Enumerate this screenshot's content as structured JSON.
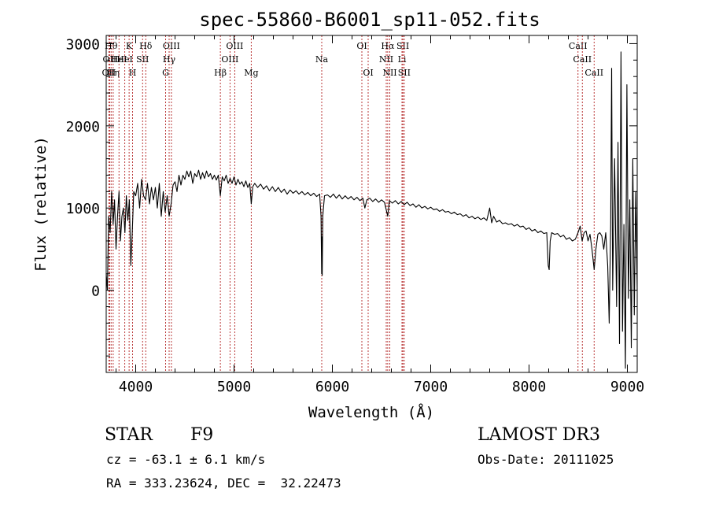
{
  "chart_data": {
    "type": "line",
    "title": "spec-55860-B6001_sp11-052.fits",
    "xlabel": "Wavelength (Å)",
    "ylabel": "Flux (relative)",
    "xlim": [
      3700,
      9100
    ],
    "ylim": [
      -1000,
      3100
    ],
    "x_ticks": [
      4000,
      5000,
      6000,
      7000,
      8000,
      9000
    ],
    "y_ticks": [
      0,
      1000,
      2000,
      3000
    ],
    "grid": false,
    "series": [
      {
        "points": [
          [
            3700,
            200
          ],
          [
            3712,
            0
          ],
          [
            3725,
            900
          ],
          [
            3740,
            700
          ],
          [
            3755,
            1200
          ],
          [
            3770,
            800
          ],
          [
            3785,
            1100
          ],
          [
            3800,
            500
          ],
          [
            3815,
            900
          ],
          [
            3830,
            1200
          ],
          [
            3845,
            600
          ],
          [
            3860,
            900
          ],
          [
            3875,
            1000
          ],
          [
            3890,
            700
          ],
          [
            3905,
            1150
          ],
          [
            3920,
            850
          ],
          [
            3935,
            1100
          ],
          [
            3950,
            300
          ],
          [
            3965,
            700
          ],
          [
            3980,
            1200
          ],
          [
            4000,
            1150
          ],
          [
            4020,
            1300
          ],
          [
            4040,
            1000
          ],
          [
            4060,
            1350
          ],
          [
            4080,
            1150
          ],
          [
            4100,
            1100
          ],
          [
            4120,
            1300
          ],
          [
            4140,
            1050
          ],
          [
            4160,
            1250
          ],
          [
            4180,
            1100
          ],
          [
            4200,
            1250
          ],
          [
            4220,
            1000
          ],
          [
            4240,
            1300
          ],
          [
            4260,
            900
          ],
          [
            4280,
            1200
          ],
          [
            4300,
            950
          ],
          [
            4320,
            1150
          ],
          [
            4340,
            900
          ],
          [
            4360,
            1050
          ],
          [
            4380,
            1280
          ],
          [
            4400,
            1320
          ],
          [
            4420,
            1200
          ],
          [
            4440,
            1400
          ],
          [
            4460,
            1280
          ],
          [
            4480,
            1400
          ],
          [
            4500,
            1350
          ],
          [
            4520,
            1450
          ],
          [
            4540,
            1380
          ],
          [
            4560,
            1450
          ],
          [
            4580,
            1300
          ],
          [
            4600,
            1420
          ],
          [
            4620,
            1380
          ],
          [
            4640,
            1460
          ],
          [
            4660,
            1350
          ],
          [
            4680,
            1430
          ],
          [
            4700,
            1360
          ],
          [
            4720,
            1450
          ],
          [
            4740,
            1380
          ],
          [
            4760,
            1420
          ],
          [
            4780,
            1350
          ],
          [
            4800,
            1400
          ],
          [
            4820,
            1340
          ],
          [
            4840,
            1400
          ],
          [
            4861,
            1150
          ],
          [
            4880,
            1380
          ],
          [
            4900,
            1330
          ],
          [
            4920,
            1400
          ],
          [
            4940,
            1300
          ],
          [
            4960,
            1360
          ],
          [
            4980,
            1300
          ],
          [
            5000,
            1380
          ],
          [
            5020,
            1280
          ],
          [
            5040,
            1350
          ],
          [
            5060,
            1290
          ],
          [
            5080,
            1320
          ],
          [
            5100,
            1260
          ],
          [
            5120,
            1330
          ],
          [
            5140,
            1250
          ],
          [
            5160,
            1300
          ],
          [
            5175,
            1050
          ],
          [
            5190,
            1260
          ],
          [
            5210,
            1300
          ],
          [
            5240,
            1250
          ],
          [
            5270,
            1290
          ],
          [
            5300,
            1230
          ],
          [
            5330,
            1270
          ],
          [
            5360,
            1210
          ],
          [
            5390,
            1260
          ],
          [
            5420,
            1200
          ],
          [
            5450,
            1250
          ],
          [
            5480,
            1190
          ],
          [
            5510,
            1230
          ],
          [
            5540,
            1170
          ],
          [
            5570,
            1220
          ],
          [
            5600,
            1180
          ],
          [
            5630,
            1210
          ],
          [
            5660,
            1170
          ],
          [
            5690,
            1200
          ],
          [
            5720,
            1160
          ],
          [
            5750,
            1190
          ],
          [
            5780,
            1150
          ],
          [
            5810,
            1180
          ],
          [
            5840,
            1140
          ],
          [
            5870,
            1170
          ],
          [
            5885,
            900
          ],
          [
            5891,
            200
          ],
          [
            5894,
            650
          ],
          [
            5897,
            180
          ],
          [
            5902,
            900
          ],
          [
            5920,
            1150
          ],
          [
            5950,
            1160
          ],
          [
            5980,
            1130
          ],
          [
            6010,
            1170
          ],
          [
            6040,
            1120
          ],
          [
            6070,
            1160
          ],
          [
            6100,
            1110
          ],
          [
            6130,
            1150
          ],
          [
            6160,
            1110
          ],
          [
            6190,
            1140
          ],
          [
            6220,
            1100
          ],
          [
            6250,
            1130
          ],
          [
            6280,
            1090
          ],
          [
            6310,
            1120
          ],
          [
            6330,
            1000
          ],
          [
            6350,
            1100
          ],
          [
            6380,
            1120
          ],
          [
            6410,
            1080
          ],
          [
            6440,
            1110
          ],
          [
            6470,
            1070
          ],
          [
            6500,
            1100
          ],
          [
            6530,
            1070
          ],
          [
            6563,
            900
          ],
          [
            6580,
            1090
          ],
          [
            6610,
            1060
          ],
          [
            6640,
            1090
          ],
          [
            6670,
            1050
          ],
          [
            6700,
            1080
          ],
          [
            6730,
            1040
          ],
          [
            6760,
            1070
          ],
          [
            6790,
            1030
          ],
          [
            6820,
            1050
          ],
          [
            6850,
            1010
          ],
          [
            6880,
            1040
          ],
          [
            6910,
            1000
          ],
          [
            6940,
            1020
          ],
          [
            6970,
            990
          ],
          [
            7000,
            1010
          ],
          [
            7030,
            980
          ],
          [
            7060,
            990
          ],
          [
            7090,
            960
          ],
          [
            7120,
            980
          ],
          [
            7150,
            950
          ],
          [
            7180,
            960
          ],
          [
            7210,
            930
          ],
          [
            7240,
            950
          ],
          [
            7270,
            920
          ],
          [
            7300,
            930
          ],
          [
            7330,
            900
          ],
          [
            7360,
            920
          ],
          [
            7390,
            880
          ],
          [
            7420,
            900
          ],
          [
            7450,
            870
          ],
          [
            7480,
            890
          ],
          [
            7510,
            860
          ],
          [
            7540,
            880
          ],
          [
            7570,
            850
          ],
          [
            7600,
            1000
          ],
          [
            7620,
            820
          ],
          [
            7640,
            900
          ],
          [
            7670,
            830
          ],
          [
            7700,
            850
          ],
          [
            7730,
            810
          ],
          [
            7760,
            820
          ],
          [
            7790,
            800
          ],
          [
            7820,
            810
          ],
          [
            7850,
            780
          ],
          [
            7880,
            800
          ],
          [
            7910,
            770
          ],
          [
            7940,
            780
          ],
          [
            7970,
            740
          ],
          [
            8000,
            760
          ],
          [
            8030,
            720
          ],
          [
            8060,
            740
          ],
          [
            8090,
            700
          ],
          [
            8120,
            720
          ],
          [
            8150,
            690
          ],
          [
            8180,
            700
          ],
          [
            8195,
            300
          ],
          [
            8205,
            250
          ],
          [
            8215,
            600
          ],
          [
            8230,
            700
          ],
          [
            8260,
            680
          ],
          [
            8290,
            690
          ],
          [
            8320,
            650
          ],
          [
            8350,
            670
          ],
          [
            8380,
            620
          ],
          [
            8410,
            640
          ],
          [
            8440,
            600
          ],
          [
            8470,
            620
          ],
          [
            8498,
            700
          ],
          [
            8520,
            780
          ],
          [
            8540,
            600
          ],
          [
            8560,
            700
          ],
          [
            8580,
            720
          ],
          [
            8600,
            600
          ],
          [
            8620,
            680
          ],
          [
            8640,
            500
          ],
          [
            8662,
            250
          ],
          [
            8680,
            500
          ],
          [
            8700,
            680
          ],
          [
            8720,
            700
          ],
          [
            8740,
            660
          ],
          [
            8760,
            500
          ],
          [
            8780,
            700
          ],
          [
            8800,
            300
          ],
          [
            8815,
            -400
          ],
          [
            8830,
            800
          ],
          [
            8840,
            2700
          ],
          [
            8850,
            0
          ],
          [
            8870,
            1600
          ],
          [
            8890,
            -200
          ],
          [
            8905,
            1800
          ],
          [
            8920,
            -650
          ],
          [
            8935,
            2900
          ],
          [
            8950,
            -500
          ],
          [
            8965,
            800
          ],
          [
            8980,
            -950
          ],
          [
            8995,
            2500
          ],
          [
            9010,
            -100
          ],
          [
            9025,
            1100
          ],
          [
            9040,
            -700
          ],
          [
            9055,
            1600
          ],
          [
            9070,
            -300
          ],
          [
            9085,
            1200
          ],
          [
            9100,
            0
          ]
        ]
      }
    ],
    "lines": [
      {
        "wl": 3727,
        "label": "OII",
        "row": 2
      },
      {
        "wl": 3735,
        "label": "OII",
        "row": 1
      },
      {
        "wl": 3750,
        "label": "Hθ",
        "row": 0
      },
      {
        "wl": 3771,
        "label": "Hη",
        "row": 2
      },
      {
        "wl": 3830,
        "label": "HeI",
        "row": 1
      },
      {
        "wl": 3889,
        "label": "HeI",
        "row": 1
      },
      {
        "wl": 3933,
        "label": "K",
        "row": 0
      },
      {
        "wl": 3968,
        "label": "H",
        "row": 2
      },
      {
        "wl": 4070,
        "label": "SII",
        "row": 1
      },
      {
        "wl": 4102,
        "label": "Hδ",
        "row": 0
      },
      {
        "wl": 4304,
        "label": "G",
        "row": 2
      },
      {
        "wl": 4340,
        "label": "Hγ",
        "row": 1
      },
      {
        "wl": 4363,
        "label": "OIII",
        "row": 0
      },
      {
        "wl": 4861,
        "label": "Hβ",
        "row": 2
      },
      {
        "wl": 4959,
        "label": "OIII",
        "row": 1
      },
      {
        "wl": 5007,
        "label": "OIII",
        "row": 0
      },
      {
        "wl": 5175,
        "label": "Mg",
        "row": 2
      },
      {
        "wl": 5892,
        "label": "Na",
        "row": 1
      },
      {
        "wl": 6300,
        "label": "OI",
        "row": 0
      },
      {
        "wl": 6364,
        "label": "OI",
        "row": 2
      },
      {
        "wl": 6548,
        "label": "NII",
        "row": 1
      },
      {
        "wl": 6563,
        "label": "Hα",
        "row": 0
      },
      {
        "wl": 6584,
        "label": "NII",
        "row": 2
      },
      {
        "wl": 6708,
        "label": "Li",
        "row": 1
      },
      {
        "wl": 6717,
        "label": "SII",
        "row": 0
      },
      {
        "wl": 6731,
        "label": "SII",
        "row": 2
      },
      {
        "wl": 8498,
        "label": "CaII",
        "row": 0
      },
      {
        "wl": 8542,
        "label": "CaII",
        "row": 1
      },
      {
        "wl": 8662,
        "label": "CaII",
        "row": 2
      }
    ]
  },
  "info": {
    "class_label": "STAR",
    "subclass": "F9",
    "survey": "LAMOST DR3",
    "redshift_line": "cz = -63.1 ± 6.1 km/s",
    "obs_date": "Obs-Date: 20111025",
    "coords": "RA = 333.23624, DEC =  32.22473"
  }
}
